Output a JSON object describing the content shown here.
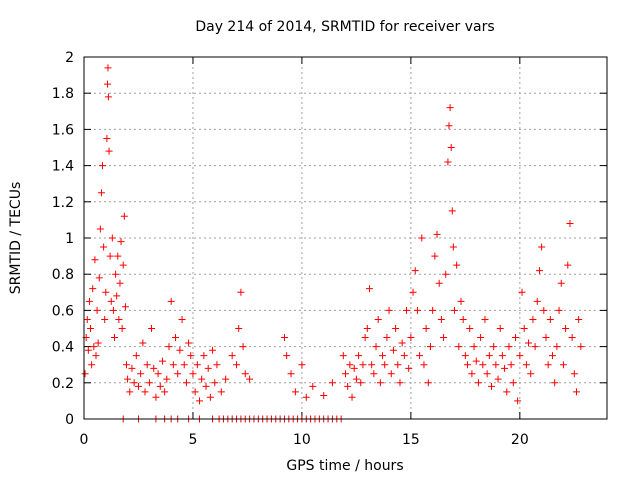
{
  "chart_data": {
    "type": "scatter",
    "title": "Day 214 of 2014, SRMTID for receiver vars",
    "xlabel": "GPS time / hours",
    "ylabel": "SRMTID / TECUs",
    "xlim": [
      0,
      24
    ],
    "ylim": [
      0,
      2
    ],
    "x_ticks": [
      0,
      5,
      10,
      15,
      20
    ],
    "x_tick_labels": [
      "0",
      "5",
      "10",
      "15",
      "20"
    ],
    "y_ticks": [
      0,
      0.2,
      0.4,
      0.6,
      0.8,
      1,
      1.2,
      1.4,
      1.6,
      1.8,
      2
    ],
    "y_tick_labels": [
      "0",
      "0.2",
      "0.4",
      "0.6",
      "0.8",
      "1",
      "1.2",
      "1.4",
      "1.6",
      "1.8",
      "2"
    ],
    "grid": true,
    "marker": "+",
    "series_color": "#ff0000",
    "series": [
      {
        "name": "SRMTID",
        "points": [
          [
            0.05,
            0.25
          ],
          [
            0.1,
            0.45
          ],
          [
            0.15,
            0.55
          ],
          [
            0.2,
            0.38
          ],
          [
            0.25,
            0.65
          ],
          [
            0.3,
            0.5
          ],
          [
            0.35,
            0.3
          ],
          [
            0.4,
            0.72
          ],
          [
            0.45,
            0.4
          ],
          [
            0.5,
            0.88
          ],
          [
            0.55,
            0.35
          ],
          [
            0.6,
            0.6
          ],
          [
            0.65,
            0.42
          ],
          [
            0.7,
            0.78
          ],
          [
            0.75,
            1.05
          ],
          [
            0.8,
            1.25
          ],
          [
            0.85,
            1.4
          ],
          [
            0.9,
            0.95
          ],
          [
            0.95,
            0.55
          ],
          [
            1.0,
            0.7
          ],
          [
            1.05,
            1.55
          ],
          [
            1.08,
            1.85
          ],
          [
            1.1,
            1.94
          ],
          [
            1.12,
            1.78
          ],
          [
            1.15,
            1.48
          ],
          [
            1.2,
            0.9
          ],
          [
            1.25,
            0.65
          ],
          [
            1.3,
            1.0
          ],
          [
            1.35,
            0.6
          ],
          [
            1.4,
            0.45
          ],
          [
            1.45,
            0.8
          ],
          [
            1.5,
            0.68
          ],
          [
            1.55,
            0.9
          ],
          [
            1.6,
            0.55
          ],
          [
            1.65,
            0.75
          ],
          [
            1.7,
            0.98
          ],
          [
            1.75,
            0.5
          ],
          [
            1.8,
            0.85
          ],
          [
            1.85,
            1.12
          ],
          [
            1.9,
            0.62
          ],
          [
            1.95,
            0.3
          ],
          [
            2.0,
            0.22
          ],
          [
            2.1,
            0.15
          ],
          [
            2.2,
            0.28
          ],
          [
            2.3,
            0.2
          ],
          [
            2.4,
            0.35
          ],
          [
            2.5,
            0.18
          ],
          [
            2.6,
            0.25
          ],
          [
            2.7,
            0.42
          ],
          [
            2.8,
            0.15
          ],
          [
            2.9,
            0.3
          ],
          [
            3.0,
            0.2
          ],
          [
            3.1,
            0.5
          ],
          [
            3.2,
            0.28
          ],
          [
            3.3,
            0.12
          ],
          [
            3.4,
            0.25
          ],
          [
            3.5,
            0.18
          ],
          [
            3.6,
            0.32
          ],
          [
            3.7,
            0.15
          ],
          [
            3.8,
            0.22
          ],
          [
            3.9,
            0.4
          ],
          [
            4.0,
            0.65
          ],
          [
            4.1,
            0.3
          ],
          [
            4.2,
            0.45
          ],
          [
            4.3,
            0.25
          ],
          [
            4.4,
            0.38
          ],
          [
            4.5,
            0.55
          ],
          [
            4.6,
            0.3
          ],
          [
            4.7,
            0.2
          ],
          [
            4.8,
            0.42
          ],
          [
            4.9,
            0.35
          ],
          [
            5.0,
            0.25
          ],
          [
            5.1,
            0.15
          ],
          [
            5.2,
            0.3
          ],
          [
            5.3,
            0.1
          ],
          [
            5.4,
            0.22
          ],
          [
            5.5,
            0.35
          ],
          [
            5.6,
            0.18
          ],
          [
            5.7,
            0.28
          ],
          [
            5.8,
            0.12
          ],
          [
            5.9,
            0.38
          ],
          [
            6.0,
            0.2
          ],
          [
            6.1,
            0.3
          ],
          [
            6.3,
            0.15
          ],
          [
            6.5,
            0.22
          ],
          [
            6.8,
            0.35
          ],
          [
            7.0,
            0.3
          ],
          [
            7.1,
            0.5
          ],
          [
            7.2,
            0.7
          ],
          [
            7.3,
            0.4
          ],
          [
            7.4,
            0.25
          ],
          [
            7.6,
            0.22
          ],
          [
            9.2,
            0.45
          ],
          [
            9.3,
            0.35
          ],
          [
            9.5,
            0.25
          ],
          [
            9.7,
            0.15
          ],
          [
            10.0,
            0.3
          ],
          [
            10.2,
            0.12
          ],
          [
            10.5,
            0.18
          ],
          [
            11.0,
            0.13
          ],
          [
            11.4,
            0.2
          ],
          [
            11.9,
            0.35
          ],
          [
            12.0,
            0.25
          ],
          [
            12.1,
            0.18
          ],
          [
            12.2,
            0.3
          ],
          [
            12.3,
            0.12
          ],
          [
            12.4,
            0.28
          ],
          [
            12.5,
            0.22
          ],
          [
            12.6,
            0.35
          ],
          [
            12.7,
            0.2
          ],
          [
            12.8,
            0.3
          ],
          [
            12.9,
            0.45
          ],
          [
            13.0,
            0.5
          ],
          [
            13.1,
            0.72
          ],
          [
            13.2,
            0.3
          ],
          [
            13.3,
            0.25
          ],
          [
            13.4,
            0.4
          ],
          [
            13.5,
            0.55
          ],
          [
            13.6,
            0.2
          ],
          [
            13.7,
            0.35
          ],
          [
            13.8,
            0.3
          ],
          [
            13.9,
            0.45
          ],
          [
            14.0,
            0.6
          ],
          [
            14.1,
            0.25
          ],
          [
            14.2,
            0.38
          ],
          [
            14.3,
            0.5
          ],
          [
            14.4,
            0.3
          ],
          [
            14.5,
            0.2
          ],
          [
            14.6,
            0.42
          ],
          [
            14.7,
            0.35
          ],
          [
            14.8,
            0.6
          ],
          [
            14.9,
            0.28
          ],
          [
            15.0,
            0.45
          ],
          [
            15.1,
            0.7
          ],
          [
            15.2,
            0.82
          ],
          [
            15.3,
            0.6
          ],
          [
            15.4,
            0.35
          ],
          [
            15.5,
            1.0
          ],
          [
            15.6,
            0.3
          ],
          [
            15.7,
            0.5
          ],
          [
            15.8,
            0.2
          ],
          [
            15.9,
            0.4
          ],
          [
            16.0,
            0.6
          ],
          [
            16.1,
            0.9
          ],
          [
            16.2,
            1.02
          ],
          [
            16.3,
            0.75
          ],
          [
            16.4,
            0.55
          ],
          [
            16.5,
            0.45
          ],
          [
            16.6,
            0.8
          ],
          [
            16.7,
            1.42
          ],
          [
            16.75,
            1.62
          ],
          [
            16.8,
            1.72
          ],
          [
            16.85,
            1.5
          ],
          [
            16.9,
            1.15
          ],
          [
            16.95,
            0.95
          ],
          [
            17.0,
            0.6
          ],
          [
            17.1,
            0.85
          ],
          [
            17.2,
            0.4
          ],
          [
            17.3,
            0.65
          ],
          [
            17.4,
            0.55
          ],
          [
            17.5,
            0.35
          ],
          [
            17.6,
            0.3
          ],
          [
            17.7,
            0.5
          ],
          [
            17.8,
            0.25
          ],
          [
            17.9,
            0.4
          ],
          [
            18.0,
            0.32
          ],
          [
            18.1,
            0.2
          ],
          [
            18.2,
            0.45
          ],
          [
            18.3,
            0.3
          ],
          [
            18.4,
            0.55
          ],
          [
            18.5,
            0.25
          ],
          [
            18.6,
            0.35
          ],
          [
            18.7,
            0.18
          ],
          [
            18.8,
            0.4
          ],
          [
            18.9,
            0.3
          ],
          [
            19.0,
            0.22
          ],
          [
            19.1,
            0.5
          ],
          [
            19.2,
            0.35
          ],
          [
            19.3,
            0.28
          ],
          [
            19.4,
            0.15
          ],
          [
            19.5,
            0.4
          ],
          [
            19.6,
            0.3
          ],
          [
            19.7,
            0.2
          ],
          [
            19.8,
            0.45
          ],
          [
            19.9,
            0.1
          ],
          [
            20.0,
            0.35
          ],
          [
            20.1,
            0.7
          ],
          [
            20.2,
            0.5
          ],
          [
            20.3,
            0.3
          ],
          [
            20.4,
            0.42
          ],
          [
            20.5,
            0.25
          ],
          [
            20.6,
            0.55
          ],
          [
            20.7,
            0.4
          ],
          [
            20.8,
            0.65
          ],
          [
            20.9,
            0.82
          ],
          [
            21.0,
            0.95
          ],
          [
            21.1,
            0.6
          ],
          [
            21.2,
            0.45
          ],
          [
            21.3,
            0.3
          ],
          [
            21.4,
            0.55
          ],
          [
            21.5,
            0.35
          ],
          [
            21.6,
            0.2
          ],
          [
            21.7,
            0.4
          ],
          [
            21.8,
            0.6
          ],
          [
            21.9,
            0.75
          ],
          [
            22.0,
            0.3
          ],
          [
            22.1,
            0.5
          ],
          [
            22.2,
            0.85
          ],
          [
            22.3,
            1.08
          ],
          [
            22.4,
            0.45
          ],
          [
            22.5,
            0.25
          ],
          [
            22.6,
            0.15
          ],
          [
            22.7,
            0.55
          ],
          [
            22.8,
            0.4
          ],
          [
            1.8,
            0
          ],
          [
            2.5,
            0
          ],
          [
            3.3,
            0
          ],
          [
            3.7,
            0
          ],
          [
            4.0,
            0
          ],
          [
            4.3,
            0
          ],
          [
            4.8,
            0
          ],
          [
            5.3,
            0
          ],
          [
            5.9,
            0
          ],
          [
            6.2,
            0
          ],
          [
            6.4,
            0
          ],
          [
            6.6,
            0
          ],
          [
            6.8,
            0
          ],
          [
            7.0,
            0
          ],
          [
            7.2,
            0
          ],
          [
            7.4,
            0
          ],
          [
            7.6,
            0
          ],
          [
            7.8,
            0
          ],
          [
            8.0,
            0
          ],
          [
            8.2,
            0
          ],
          [
            8.4,
            0
          ],
          [
            8.6,
            0
          ],
          [
            8.8,
            0
          ],
          [
            9.0,
            0
          ],
          [
            9.2,
            0
          ],
          [
            9.4,
            0
          ],
          [
            9.6,
            0
          ],
          [
            9.8,
            0
          ],
          [
            10.0,
            0
          ],
          [
            10.2,
            0
          ],
          [
            10.4,
            0
          ],
          [
            10.6,
            0
          ],
          [
            10.8,
            0
          ],
          [
            11.0,
            0
          ],
          [
            11.2,
            0
          ],
          [
            11.4,
            0
          ],
          [
            11.6,
            0
          ],
          [
            11.8,
            0
          ]
        ]
      }
    ]
  }
}
